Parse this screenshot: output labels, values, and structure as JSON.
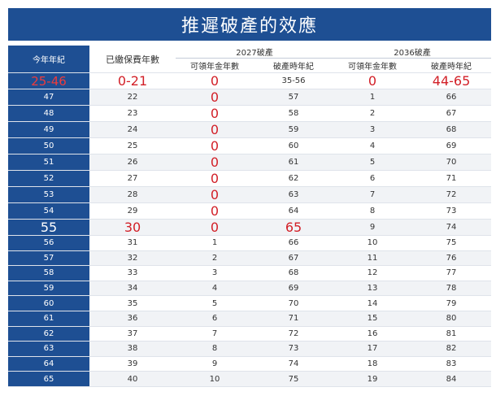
{
  "title": "推遲破產的效應",
  "headers": {
    "age": "今年年紀",
    "years_paid": "已繳保費年數",
    "group_2027": "2027破產",
    "group_2036": "2036破產",
    "pension_years": "可領年金年數",
    "bankrupt_age": "破產時年紀"
  },
  "accent_colors": {
    "header": "#1e4f93",
    "highlight": "#d21f27"
  },
  "rows": [
    [
      "25-46",
      "0-21",
      "0",
      "35-56",
      "0",
      "44-65"
    ],
    [
      "47",
      "22",
      "0",
      "57",
      "1",
      "66"
    ],
    [
      "48",
      "23",
      "0",
      "58",
      "2",
      "67"
    ],
    [
      "49",
      "24",
      "0",
      "59",
      "3",
      "68"
    ],
    [
      "50",
      "25",
      "0",
      "60",
      "4",
      "69"
    ],
    [
      "51",
      "26",
      "0",
      "61",
      "5",
      "70"
    ],
    [
      "52",
      "27",
      "0",
      "62",
      "6",
      "71"
    ],
    [
      "53",
      "28",
      "0",
      "63",
      "7",
      "72"
    ],
    [
      "54",
      "29",
      "0",
      "64",
      "8",
      "73"
    ],
    [
      "55",
      "30",
      "0",
      "65",
      "9",
      "74"
    ],
    [
      "56",
      "31",
      "1",
      "66",
      "10",
      "75"
    ],
    [
      "57",
      "32",
      "2",
      "67",
      "11",
      "76"
    ],
    [
      "58",
      "33",
      "3",
      "68",
      "12",
      "77"
    ],
    [
      "59",
      "34",
      "4",
      "69",
      "13",
      "78"
    ],
    [
      "60",
      "35",
      "5",
      "70",
      "14",
      "79"
    ],
    [
      "61",
      "36",
      "6",
      "71",
      "15",
      "80"
    ],
    [
      "62",
      "37",
      "7",
      "72",
      "16",
      "81"
    ],
    [
      "63",
      "38",
      "8",
      "73",
      "17",
      "82"
    ],
    [
      "64",
      "39",
      "9",
      "74",
      "18",
      "83"
    ],
    [
      "65",
      "40",
      "10",
      "75",
      "19",
      "84"
    ]
  ]
}
